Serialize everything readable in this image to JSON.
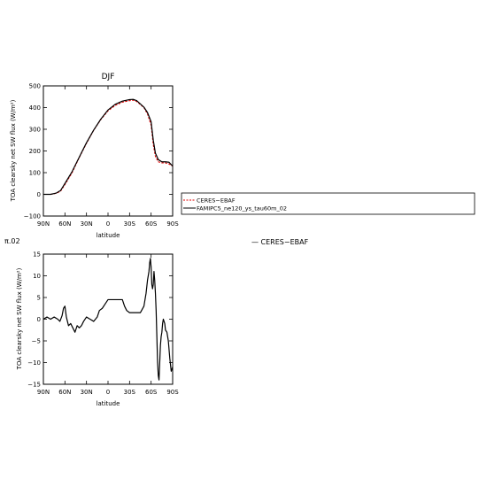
{
  "fragments": {
    "panel_title_left": "π.02",
    "stray_legend": "— CERES−EBAF"
  },
  "chart_data": [
    {
      "type": "line",
      "title": "DJF",
      "xlabel": "latitude",
      "ylabel": "TOA clearsky net SW flux (W/m²)",
      "xlim": [
        90,
        -90
      ],
      "ylim": [
        -100,
        500
      ],
      "x_ticks": [
        90,
        60,
        30,
        0,
        -30,
        -60,
        -90
      ],
      "x_tick_labels": [
        "90N",
        "60N",
        "30N",
        "0",
        "30S",
        "60S",
        "90S"
      ],
      "y_ticks": [
        -100,
        0,
        100,
        200,
        300,
        400,
        500
      ],
      "y_tick_labels": [
        "−100",
        "0",
        "100",
        "200",
        "300",
        "400",
        "500"
      ],
      "legend": {
        "position": "right",
        "entries": [
          "CERES−EBAF",
          "FAMIPC5_ne120_ys_tau60m_02"
        ]
      },
      "series": [
        {
          "name": "CERES−EBAF",
          "color": "#e00000",
          "dashed": true,
          "x": [
            90,
            80,
            72,
            66,
            60,
            50,
            40,
            30,
            20,
            10,
            0,
            -10,
            -20,
            -30,
            -35,
            -40,
            -50,
            -55,
            -60,
            -63,
            -66,
            -70,
            -75,
            -80,
            -85,
            -90
          ],
          "values": [
            0,
            0,
            5,
            15,
            45,
            100,
            170,
            235,
            295,
            345,
            385,
            410,
            425,
            432,
            434,
            428,
            400,
            370,
            320,
            230,
            175,
            150,
            145,
            145,
            140,
            130
          ]
        },
        {
          "name": "FAMIPC5_ne120_ys_tau60m_02",
          "color": "#000000",
          "dashed": false,
          "x": [
            90,
            80,
            72,
            66,
            60,
            50,
            40,
            30,
            20,
            10,
            0,
            -10,
            -20,
            -30,
            -35,
            -40,
            -50,
            -55,
            -60,
            -63,
            -66,
            -70,
            -75,
            -80,
            -85,
            -90
          ],
          "values": [
            0,
            0,
            6,
            18,
            50,
            105,
            172,
            238,
            296,
            347,
            389,
            415,
            430,
            437,
            438,
            432,
            402,
            377,
            335,
            250,
            190,
            160,
            150,
            150,
            148,
            130
          ]
        }
      ]
    },
    {
      "type": "line",
      "title": "",
      "xlabel": "latitude",
      "ylabel": "TOA clearsky net SW flux (W/m²)",
      "xlim": [
        90,
        -90
      ],
      "ylim": [
        -15,
        15
      ],
      "x_ticks": [
        90,
        60,
        30,
        0,
        -30,
        -60,
        -90
      ],
      "x_tick_labels": [
        "90N",
        "60N",
        "30N",
        "0",
        "30S",
        "60S",
        "90S"
      ],
      "y_ticks": [
        -15,
        -10,
        -5,
        0,
        5,
        10,
        15
      ],
      "y_tick_labels": [
        "−15",
        "−10",
        "−5",
        "0",
        "5",
        "10",
        "15"
      ],
      "series": [
        {
          "name": "",
          "color": "#000000",
          "dashed": false,
          "x": [
            90,
            85,
            80,
            75,
            70,
            67,
            64,
            62,
            60,
            58,
            55,
            52,
            49,
            46,
            43,
            40,
            37,
            34,
            30,
            25,
            20,
            15,
            12,
            8,
            4,
            0,
            -5,
            -10,
            -15,
            -20,
            -23,
            -26,
            -30,
            -35,
            -40,
            -45,
            -50,
            -53,
            -55,
            -57,
            -58,
            -59,
            -60,
            -61,
            -62,
            -63,
            -64,
            -65,
            -66,
            -67,
            -68,
            -69,
            -70,
            -71,
            -72,
            -73,
            -74,
            -75,
            -76,
            -77,
            -78,
            -79,
            -80,
            -82,
            -84,
            -86,
            -88,
            -90
          ],
          "values": [
            0,
            0.5,
            0,
            0.5,
            0,
            -0.5,
            0.8,
            2.5,
            3,
            0.5,
            -1.5,
            -1,
            -2,
            -3,
            -1.5,
            -2,
            -1.5,
            -0.5,
            0.5,
            0,
            -0.5,
            0.5,
            2,
            2.5,
            3.5,
            4.5,
            4.5,
            4.5,
            4.5,
            4.5,
            3,
            2,
            1.5,
            1.5,
            1.5,
            1.5,
            3,
            6,
            9,
            11,
            13,
            14,
            12,
            8,
            7,
            8,
            11,
            9,
            6,
            2,
            -4,
            -10,
            -13,
            -14,
            -10,
            -6,
            -4,
            -3,
            -1,
            0,
            -0.5,
            -1,
            -2.5,
            -3,
            -5,
            -9,
            -12,
            -11
          ]
        }
      ]
    }
  ]
}
